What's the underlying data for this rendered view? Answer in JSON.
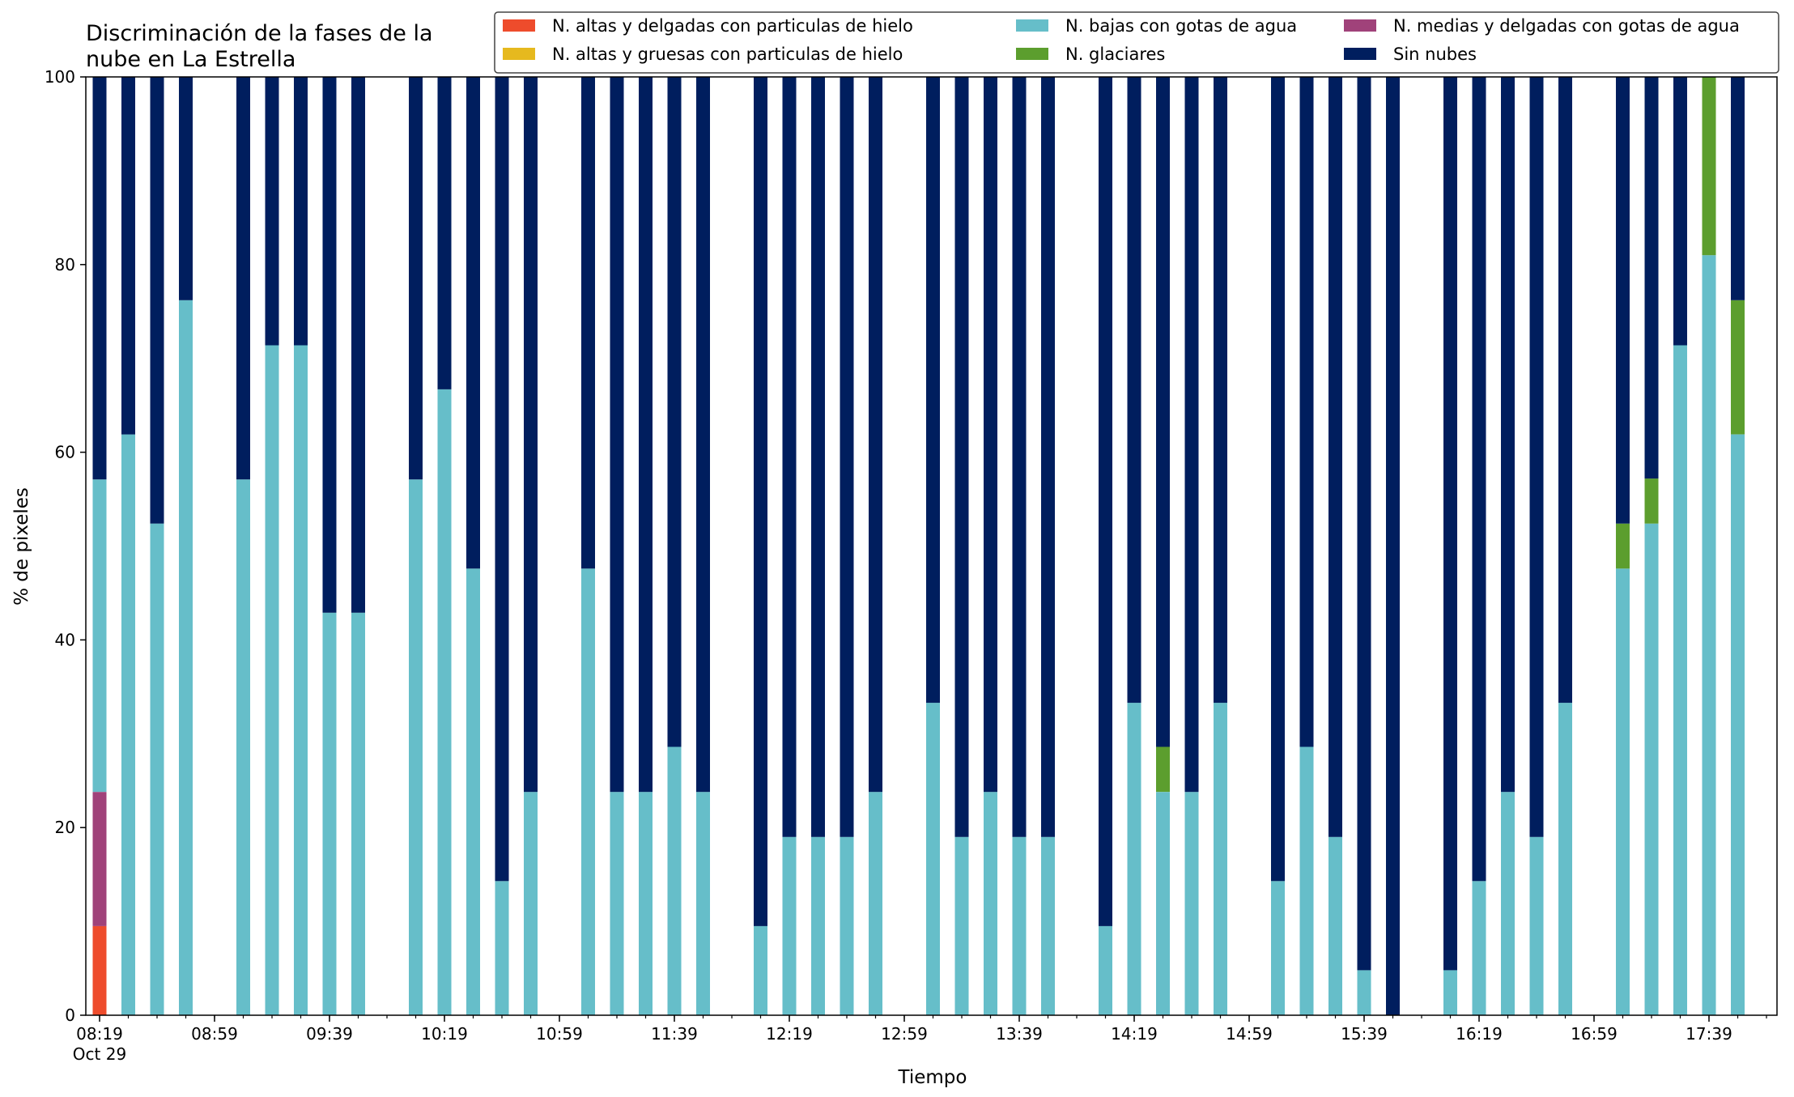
{
  "chart_data": {
    "type": "bar",
    "stacked": true,
    "title_lines": [
      "Discriminación de la fases de la",
      "nube en La Estrella"
    ],
    "xlabel": "Tiempo",
    "ylabel": "% de pixeles",
    "ylim": [
      0,
      100
    ],
    "yticks": [
      0,
      20,
      40,
      60,
      80,
      100
    ],
    "x_interval_minutes": 10,
    "x_start": "08:19",
    "x_end": "17:49",
    "x_tick_labels": [
      {
        "time": "08:19",
        "label": "08:19",
        "sublabel": "Oct 29"
      },
      {
        "time": "08:59",
        "label": "08:59"
      },
      {
        "time": "09:39",
        "label": "09:39"
      },
      {
        "time": "10:19",
        "label": "10:19"
      },
      {
        "time": "10:59",
        "label": "10:59"
      },
      {
        "time": "11:39",
        "label": "11:39"
      },
      {
        "time": "12:19",
        "label": "12:19"
      },
      {
        "time": "12:59",
        "label": "12:59"
      },
      {
        "time": "13:39",
        "label": "13:39"
      },
      {
        "time": "14:19",
        "label": "14:19"
      },
      {
        "time": "14:59",
        "label": "14:59"
      },
      {
        "time": "15:39",
        "label": "15:39"
      },
      {
        "time": "16:19",
        "label": "16:19"
      },
      {
        "time": "16:59",
        "label": "16:59"
      },
      {
        "time": "17:39",
        "label": "17:39"
      }
    ],
    "legend_position": "top-right",
    "grid": false,
    "series": [
      {
        "name": "N. altas y delgadas con particulas de hielo",
        "color": "#ee4c2c"
      },
      {
        "name": "N. altas y gruesas con particulas de hielo",
        "color": "#e6b91e"
      },
      {
        "name": "N. medias y delgadas con gotas de agua",
        "color": "#a0427a"
      },
      {
        "name": "N. bajas con gotas de agua",
        "color": "#66bec9"
      },
      {
        "name": "N. glaciares",
        "color": "#5c9e2e"
      },
      {
        "name": "Sin nubes",
        "color": "#001e5e"
      }
    ],
    "legend_order": [
      "N. altas y delgadas con particulas de hielo",
      "N. altas y gruesas con particulas de hielo",
      "N. bajas con gotas de agua",
      "N. glaciares",
      "N. medias y delgadas con gotas de agua",
      "Sin nubes"
    ],
    "bars": [
      {
        "time": "08:19",
        "values": [
          9.5,
          0,
          14.3,
          33.3,
          0,
          42.9
        ]
      },
      {
        "time": "08:29",
        "values": [
          0,
          0,
          0,
          61.9,
          0,
          38.1
        ]
      },
      {
        "time": "08:39",
        "values": [
          0,
          0,
          0,
          52.4,
          0,
          47.6
        ]
      },
      {
        "time": "08:49",
        "values": [
          0,
          0,
          0,
          76.2,
          0,
          23.8
        ]
      },
      {
        "time": "09:09",
        "values": [
          0,
          0,
          0,
          57.1,
          0,
          42.9
        ]
      },
      {
        "time": "09:19",
        "values": [
          0,
          0,
          0,
          71.4,
          0,
          28.6
        ]
      },
      {
        "time": "09:29",
        "values": [
          0,
          0,
          0,
          71.4,
          0,
          28.6
        ]
      },
      {
        "time": "09:39",
        "values": [
          0,
          0,
          0,
          42.9,
          0,
          57.1
        ]
      },
      {
        "time": "09:49",
        "values": [
          0,
          0,
          0,
          42.9,
          0,
          57.1
        ]
      },
      {
        "time": "10:09",
        "values": [
          0,
          0,
          0,
          57.1,
          0,
          42.9
        ]
      },
      {
        "time": "10:19",
        "values": [
          0,
          0,
          0,
          66.7,
          0,
          33.3
        ]
      },
      {
        "time": "10:29",
        "values": [
          0,
          0,
          0,
          47.6,
          0,
          52.4
        ]
      },
      {
        "time": "10:39",
        "values": [
          0,
          0,
          0,
          14.3,
          0,
          85.7
        ]
      },
      {
        "time": "10:49",
        "values": [
          0,
          0,
          0,
          23.8,
          0,
          76.2
        ]
      },
      {
        "time": "11:09",
        "values": [
          0,
          0,
          0,
          47.6,
          0,
          52.4
        ]
      },
      {
        "time": "11:19",
        "values": [
          0,
          0,
          0,
          23.8,
          0,
          76.2
        ]
      },
      {
        "time": "11:29",
        "values": [
          0,
          0,
          0,
          23.8,
          0,
          76.2
        ]
      },
      {
        "time": "11:39",
        "values": [
          0,
          0,
          0,
          28.6,
          0,
          71.4
        ]
      },
      {
        "time": "11:49",
        "values": [
          0,
          0,
          0,
          23.8,
          0,
          76.2
        ]
      },
      {
        "time": "12:09",
        "values": [
          0,
          0,
          0,
          9.5,
          0,
          90.5
        ]
      },
      {
        "time": "12:19",
        "values": [
          0,
          0,
          0,
          19.0,
          0,
          81.0
        ]
      },
      {
        "time": "12:29",
        "values": [
          0,
          0,
          0,
          19.0,
          0,
          81.0
        ]
      },
      {
        "time": "12:39",
        "values": [
          0,
          0,
          0,
          19.0,
          0,
          81.0
        ]
      },
      {
        "time": "12:49",
        "values": [
          0,
          0,
          0,
          23.8,
          0,
          76.2
        ]
      },
      {
        "time": "13:09",
        "values": [
          0,
          0,
          0,
          33.3,
          0,
          66.7
        ]
      },
      {
        "time": "13:19",
        "values": [
          0,
          0,
          0,
          19.0,
          0,
          81.0
        ]
      },
      {
        "time": "13:29",
        "values": [
          0,
          0,
          0,
          23.8,
          0,
          76.2
        ]
      },
      {
        "time": "13:39",
        "values": [
          0,
          0,
          0,
          19.0,
          0,
          81.0
        ]
      },
      {
        "time": "13:49",
        "values": [
          0,
          0,
          0,
          19.0,
          0,
          81.0
        ]
      },
      {
        "time": "14:09",
        "values": [
          0,
          0,
          0,
          9.5,
          0,
          90.5
        ]
      },
      {
        "time": "14:19",
        "values": [
          0,
          0,
          0,
          33.3,
          0,
          66.7
        ]
      },
      {
        "time": "14:29",
        "values": [
          0,
          0,
          0,
          23.8,
          4.8,
          71.4
        ]
      },
      {
        "time": "14:39",
        "values": [
          0,
          0,
          0,
          23.8,
          0,
          76.2
        ]
      },
      {
        "time": "14:49",
        "values": [
          0,
          0,
          0,
          33.3,
          0,
          66.7
        ]
      },
      {
        "time": "15:09",
        "values": [
          0,
          0,
          0,
          14.3,
          0,
          85.7
        ]
      },
      {
        "time": "15:19",
        "values": [
          0,
          0,
          0,
          28.6,
          0,
          71.4
        ]
      },
      {
        "time": "15:29",
        "values": [
          0,
          0,
          0,
          19.0,
          0,
          81.0
        ]
      },
      {
        "time": "15:39",
        "values": [
          0,
          0,
          0,
          4.8,
          0,
          95.2
        ]
      },
      {
        "time": "15:49",
        "values": [
          0,
          0,
          0,
          0,
          0,
          100
        ]
      },
      {
        "time": "16:09",
        "values": [
          0,
          0,
          0,
          4.8,
          0,
          95.2
        ]
      },
      {
        "time": "16:19",
        "values": [
          0,
          0,
          0,
          14.3,
          0,
          85.7
        ]
      },
      {
        "time": "16:29",
        "values": [
          0,
          0,
          0,
          23.8,
          0,
          76.2
        ]
      },
      {
        "time": "16:39",
        "values": [
          0,
          0,
          0,
          19.0,
          0,
          81.0
        ]
      },
      {
        "time": "16:49",
        "values": [
          0,
          0,
          0,
          33.3,
          0,
          66.7
        ]
      },
      {
        "time": "17:09",
        "values": [
          0,
          0,
          0,
          47.6,
          4.8,
          47.6
        ]
      },
      {
        "time": "17:19",
        "values": [
          0,
          0,
          0,
          52.4,
          4.8,
          42.8
        ]
      },
      {
        "time": "17:29",
        "values": [
          0,
          0,
          0,
          71.4,
          0,
          28.6
        ]
      },
      {
        "time": "17:39",
        "values": [
          0,
          0,
          0,
          81.0,
          19.0,
          0
        ]
      },
      {
        "time": "17:49",
        "values": [
          0,
          0,
          0,
          61.9,
          14.3,
          23.8
        ]
      }
    ]
  }
}
